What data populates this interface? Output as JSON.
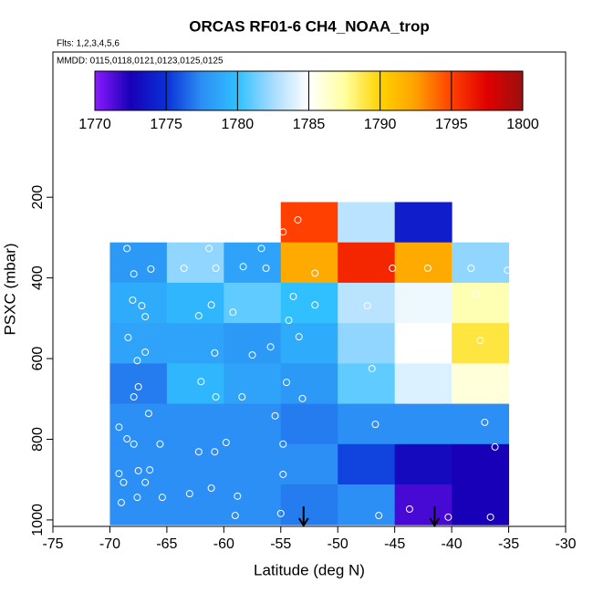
{
  "chart_data": {
    "type": "heatmap",
    "title": "ORCAS RF01-6 CH4_NOAA_trop",
    "subtitle": "Flts: 1,2,3,4,5,6",
    "annotation": "MMDD: 0115,0118,0121,0123,0125,0125",
    "xlabel": "Latitude (deg N)",
    "ylabel": "PSXC (mbar)",
    "xlim": [
      -75,
      -30
    ],
    "xticks": [
      -75,
      -70,
      -65,
      -60,
      -55,
      -50,
      -45,
      -40,
      -35,
      -30
    ],
    "ylim": [
      1016,
      -160
    ],
    "yticks": [
      200,
      400,
      600,
      800,
      1000
    ],
    "x_bins": [
      -70,
      -65,
      -60,
      -55,
      -50,
      -45,
      -40,
      -35
    ],
    "y_bins": [
      212,
      312,
      412,
      512,
      612,
      712,
      812,
      912,
      1012
    ],
    "values": [
      [
        null,
        null,
        null,
        1795,
        1783,
        1774,
        null
      ],
      [
        1778,
        1782,
        1778.5,
        1792,
        1796,
        1792,
        1782
      ],
      [
        1779,
        1779.5,
        1781,
        1780,
        1783,
        1784.5,
        1787
      ],
      [
        1778.5,
        1778.5,
        1778,
        1779,
        1782,
        1785,
        1789
      ],
      [
        1777,
        1779.5,
        1778.5,
        1778,
        1781,
        1784,
        1786
      ],
      [
        1777.5,
        1777.5,
        1777.5,
        1777,
        1777.5,
        1777.5,
        1777.5
      ],
      [
        1777.5,
        1777.5,
        1777.5,
        1777.5,
        1775.5,
        1773,
        1772.5
      ],
      [
        1777.5,
        1777.5,
        1777.5,
        1777,
        1777.5,
        1771.5,
        1772.5
      ]
    ],
    "zlim": [
      1770,
      1800
    ],
    "zticks": [
      1770,
      1775,
      1780,
      1785,
      1790,
      1795,
      1800
    ],
    "colors": [
      "#8b1aff",
      "#1800b8",
      "#0a30d8",
      "#2c8ff5",
      "#30c0ff",
      "#a8dcff",
      "#ffffff",
      "#ffffa0",
      "#ffd300",
      "#ffa000",
      "#ff4000",
      "#e00000",
      "#9a1010"
    ],
    "points": {
      "x": [
        -68.5,
        -66.4,
        -67.9,
        -68.0,
        -67.2,
        -66.9,
        -68.4,
        -66.9,
        -67.6,
        -67.5,
        -67.9,
        -66.6,
        -68.5,
        -69.2,
        -67.9,
        -65.6,
        -69.2,
        -67.5,
        -66.5,
        -68.8,
        -66.9,
        -69.0,
        -67.6,
        -65.4,
        -63.5,
        -61.3,
        -60.7,
        -58.3,
        -56.7,
        -56.3,
        -62.2,
        -61.1,
        -59.2,
        -60.8,
        -57.5,
        -55.9,
        -62.0,
        -60.7,
        -58.4,
        -62.2,
        -60.8,
        -59.8,
        -63.0,
        -61.1,
        -58.8,
        -59.0,
        -54.8,
        -53.5,
        -52.0,
        -53.9,
        -52.0,
        -54.3,
        -53.4,
        -54.5,
        -53.1,
        -55.5,
        -54.8,
        -54.8,
        -55.0,
        -46.4,
        -47.4,
        -47.0,
        -46.7,
        -45.2,
        -42.1,
        -43.7,
        -40.3,
        -36.6,
        -38.3,
        -35.1,
        -37.5,
        -36.0,
        -37.1,
        -36.2,
        -37.9
      ],
      "y": [
        327,
        378,
        390,
        455,
        469,
        496,
        548,
        584,
        605,
        670,
        695,
        736,
        799,
        770,
        812,
        812,
        885,
        878,
        876,
        907,
        907,
        957,
        944,
        944,
        376,
        327,
        376,
        372,
        327,
        376,
        494,
        467,
        485,
        586,
        591,
        571,
        657,
        695,
        695,
        831,
        831,
        808,
        935,
        921,
        941,
        989,
        286,
        256,
        388,
        446,
        467,
        505,
        546,
        659,
        699,
        742,
        812,
        887,
        984,
        989,
        469,
        625,
        763,
        376,
        376,
        973,
        993,
        993,
        376,
        381,
        555,
        666,
        758,
        819,
        440
      ]
    },
    "arrows_x": [
      -53,
      -41.5
    ]
  }
}
